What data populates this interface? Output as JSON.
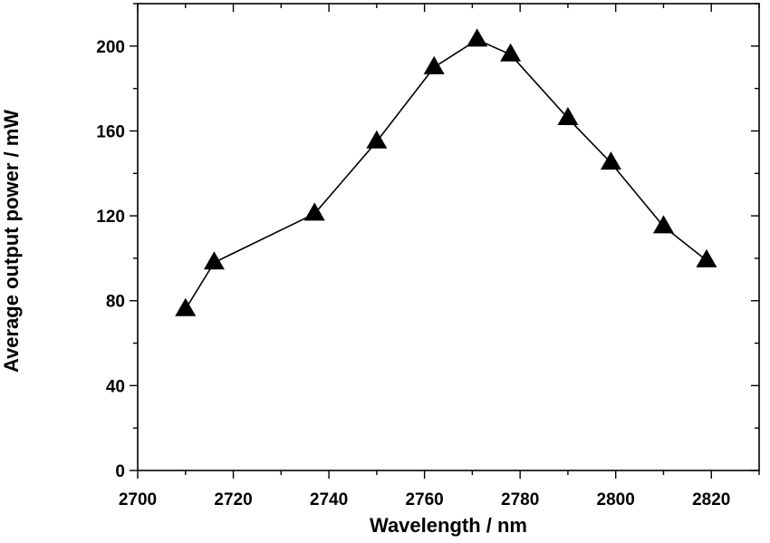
{
  "chart_data": {
    "type": "line",
    "title": "",
    "xlabel": "Wavelength / nm",
    "ylabel": "Average output power / mW",
    "xlim": [
      2700,
      2830
    ],
    "ylim": [
      0,
      220
    ],
    "x_ticks": [
      2700,
      2720,
      2740,
      2760,
      2780,
      2800,
      2820
    ],
    "y_ticks": [
      0,
      40,
      80,
      120,
      160,
      200
    ],
    "grid": false,
    "legend": "none",
    "marker": "filled-triangle",
    "color": "#000000",
    "series": [
      {
        "x": [
          2710,
          2716,
          2737,
          2750,
          2762,
          2771,
          2778,
          2790,
          2799,
          2810,
          2819
        ],
        "y": [
          76,
          98,
          121,
          155,
          190,
          203,
          196,
          166,
          145,
          115,
          99
        ]
      }
    ]
  }
}
